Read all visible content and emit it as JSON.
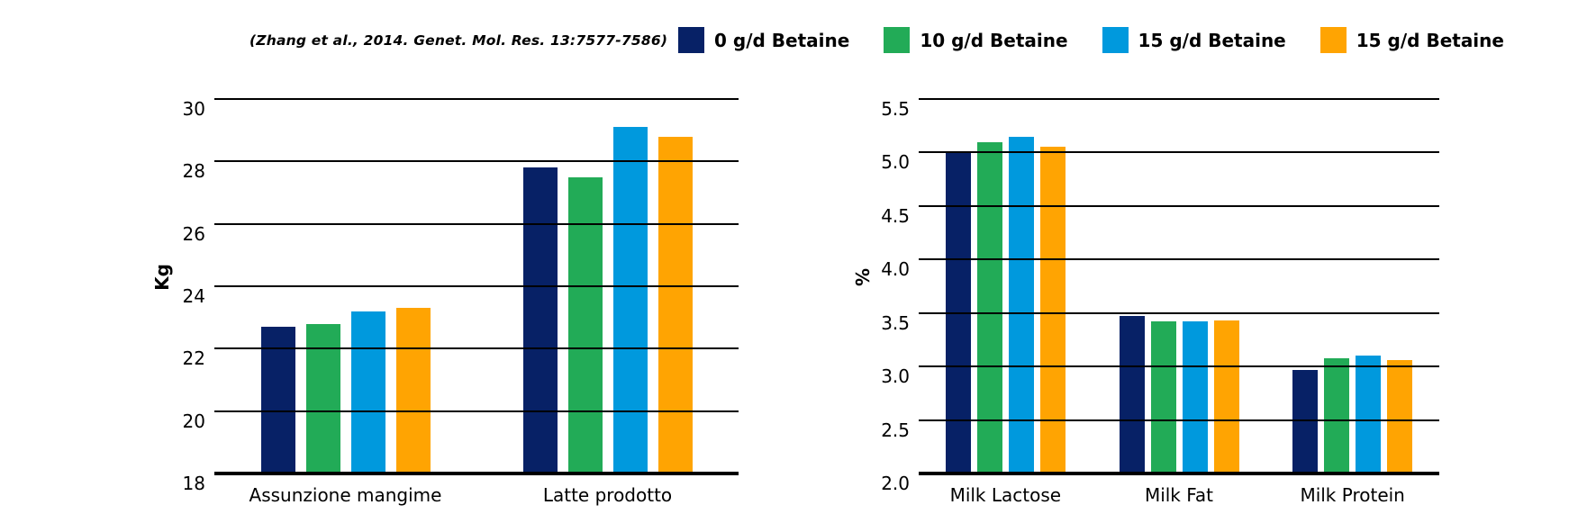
{
  "citation": "(Zhang et al., 2014. Genet. Mol. Res. 13:7577-7586)",
  "colors": {
    "navy": "#072166",
    "green": "#22ab57",
    "blue": "#0099dd",
    "orange": "#ffa402",
    "grid": "#000000",
    "background": "#ffffff"
  },
  "legend": [
    {
      "label": "0 g/d Betaine",
      "color": "#072166"
    },
    {
      "label": "10 g/d Betaine",
      "color": "#22ab57"
    },
    {
      "label": "15 g/d Betaine",
      "color": "#0099dd"
    },
    {
      "label": "15 g/d Betaine",
      "color": "#ffa402"
    }
  ],
  "chart_data": [
    {
      "type": "bar",
      "title": "",
      "xlabel": "",
      "ylabel": "Kg",
      "ylim": [
        18,
        30
      ],
      "ytick_labels": [
        "18",
        "20",
        "22",
        "24",
        "26",
        "28",
        "30"
      ],
      "ytick_values": [
        18,
        20,
        22,
        24,
        26,
        28,
        30
      ],
      "grid": true,
      "legend_position": "top",
      "categories": [
        "Assunzione mangime",
        "Latte prodotto"
      ],
      "series": [
        {
          "name": "0 g/d Betaine",
          "values": [
            22.7,
            27.8
          ]
        },
        {
          "name": "10 g/d Betaine",
          "values": [
            22.8,
            27.5
          ]
        },
        {
          "name": "15 g/d Betaine",
          "values": [
            23.2,
            29.1
          ]
        },
        {
          "name": "15 g/d Betaine",
          "values": [
            23.3,
            28.8
          ]
        }
      ]
    },
    {
      "type": "bar",
      "title": "",
      "xlabel": "",
      "ylabel": "%",
      "ylim": [
        2.0,
        5.5
      ],
      "ytick_labels": [
        "2.0",
        "2.5",
        "3.0",
        "3.5",
        "4.0",
        "4.5",
        "5.0",
        "5.5"
      ],
      "ytick_values": [
        2.0,
        2.5,
        3.0,
        3.5,
        4.0,
        4.5,
        5.0,
        5.5
      ],
      "grid": true,
      "legend_position": "top",
      "categories": [
        "Milk Lactose",
        "Milk Fat",
        "Milk Protein"
      ],
      "series": [
        {
          "name": "0 g/d Betaine",
          "values": [
            5.0,
            3.47,
            2.97
          ]
        },
        {
          "name": "10 g/d Betaine",
          "values": [
            5.1,
            3.42,
            3.08
          ]
        },
        {
          "name": "15 g/d Betaine",
          "values": [
            5.15,
            3.42,
            3.1
          ]
        },
        {
          "name": "15 g/d Betaine",
          "values": [
            5.05,
            3.43,
            3.06
          ]
        }
      ]
    }
  ]
}
